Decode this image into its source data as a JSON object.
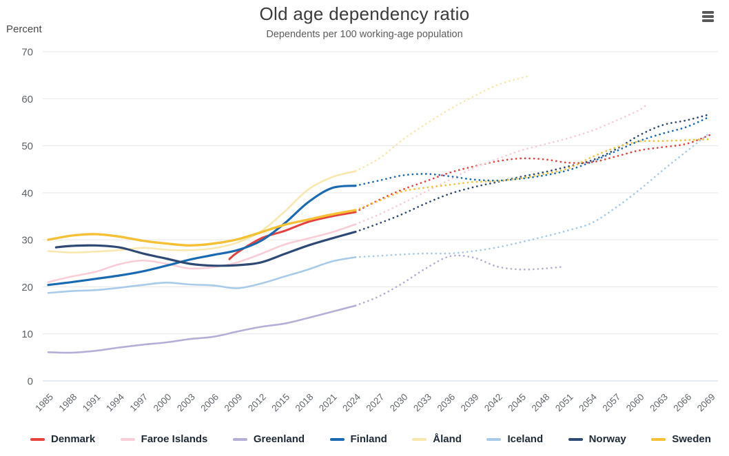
{
  "header": {
    "title": "Old age dependency ratio",
    "subtitle": "Dependents per 100 working-age population"
  },
  "controls": {
    "context_menu_tooltip": "Chart context menu"
  },
  "chart_data": {
    "type": "line",
    "title": "Old age dependency ratio",
    "subtitle": "Dependents per 100 working-age population",
    "ylabel": "Percent",
    "xlabel": "",
    "ylim": [
      0,
      70
    ],
    "xlim": [
      1985,
      2070
    ],
    "y_ticks": [
      0,
      10,
      20,
      30,
      40,
      50,
      60,
      70
    ],
    "x_ticks": [
      1985,
      1988,
      1991,
      1994,
      1997,
      2000,
      2003,
      2006,
      2009,
      2012,
      2015,
      2018,
      2021,
      2024,
      2027,
      2030,
      2033,
      2036,
      2039,
      2042,
      2045,
      2048,
      2051,
      2054,
      2057,
      2060,
      2063,
      2066,
      2069
    ],
    "x_tick_rotation": -45,
    "grid": "horizontal",
    "grid_color": "#e7e7e7",
    "axis_line_color": "#ccd6eb",
    "legend_position": "bottom",
    "projection_style": "dotted",
    "series": [
      {
        "name": "Denmark",
        "color": "#e6413c",
        "width": 3.0,
        "solid": [
          [
            2008,
            25.9
          ],
          [
            2009,
            27.3
          ],
          [
            2012,
            30.3
          ],
          [
            2015,
            31.9
          ],
          [
            2018,
            33.8
          ],
          [
            2021,
            35.0
          ],
          [
            2024,
            35.9
          ]
        ],
        "projected": [
          [
            2024,
            35.9
          ],
          [
            2027,
            38.5
          ],
          [
            2030,
            40.7
          ],
          [
            2033,
            42.5
          ],
          [
            2036,
            44.3
          ],
          [
            2039,
            45.6
          ],
          [
            2042,
            46.7
          ],
          [
            2045,
            47.3
          ],
          [
            2048,
            47.1
          ],
          [
            2051,
            46.4
          ],
          [
            2054,
            46.5
          ],
          [
            2057,
            47.7
          ],
          [
            2060,
            49.0
          ],
          [
            2063,
            49.7
          ],
          [
            2066,
            50.4
          ],
          [
            2069,
            52.3
          ]
        ]
      },
      {
        "name": "Faroe Islands",
        "color": "#f9cdd8",
        "width": 2.6,
        "solid": [
          [
            1985,
            21.0
          ],
          [
            1988,
            22.2
          ],
          [
            1991,
            23.2
          ],
          [
            1994,
            24.8
          ],
          [
            1997,
            25.6
          ],
          [
            2000,
            24.9
          ],
          [
            2003,
            23.9
          ],
          [
            2006,
            24.2
          ],
          [
            2009,
            25.2
          ],
          [
            2012,
            27.0
          ],
          [
            2015,
            29.0
          ],
          [
            2018,
            30.3
          ],
          [
            2021,
            31.6
          ],
          [
            2024,
            33.3
          ]
        ],
        "projected": [
          [
            2024,
            33.3
          ],
          [
            2027,
            35.4
          ],
          [
            2030,
            37.8
          ],
          [
            2033,
            40.3
          ],
          [
            2036,
            42.8
          ],
          [
            2039,
            45.3
          ],
          [
            2042,
            47.2
          ],
          [
            2045,
            49.0
          ],
          [
            2048,
            50.3
          ],
          [
            2051,
            51.6
          ],
          [
            2054,
            53.2
          ],
          [
            2057,
            55.3
          ],
          [
            2060,
            57.6
          ],
          [
            2061,
            58.8
          ]
        ]
      },
      {
        "name": "Greenland",
        "color": "#b6aed6",
        "width": 2.6,
        "solid": [
          [
            1985,
            6.1
          ],
          [
            1988,
            6.0
          ],
          [
            1991,
            6.4
          ],
          [
            1994,
            7.1
          ],
          [
            1997,
            7.7
          ],
          [
            2000,
            8.2
          ],
          [
            2003,
            8.9
          ],
          [
            2006,
            9.4
          ],
          [
            2009,
            10.5
          ],
          [
            2012,
            11.5
          ],
          [
            2015,
            12.2
          ],
          [
            2018,
            13.4
          ],
          [
            2021,
            14.7
          ],
          [
            2024,
            16.0
          ]
        ],
        "projected": [
          [
            2024,
            16.0
          ],
          [
            2027,
            18.0
          ],
          [
            2030,
            20.8
          ],
          [
            2033,
            24.0
          ],
          [
            2036,
            26.5
          ],
          [
            2039,
            26.2
          ],
          [
            2042,
            24.3
          ],
          [
            2045,
            23.7
          ],
          [
            2048,
            23.9
          ],
          [
            2050,
            24.2
          ]
        ]
      },
      {
        "name": "Finland",
        "color": "#1a6ab2",
        "width": 3.2,
        "solid": [
          [
            1985,
            20.4
          ],
          [
            1988,
            21.0
          ],
          [
            1991,
            21.7
          ],
          [
            1994,
            22.4
          ],
          [
            1997,
            23.3
          ],
          [
            2000,
            24.5
          ],
          [
            2003,
            25.8
          ],
          [
            2006,
            26.8
          ],
          [
            2009,
            27.8
          ],
          [
            2012,
            29.8
          ],
          [
            2015,
            33.5
          ],
          [
            2018,
            38.0
          ],
          [
            2021,
            41.0
          ],
          [
            2024,
            41.5
          ]
        ],
        "projected": [
          [
            2024,
            41.5
          ],
          [
            2027,
            42.6
          ],
          [
            2030,
            43.7
          ],
          [
            2033,
            44.0
          ],
          [
            2036,
            43.5
          ],
          [
            2039,
            42.8
          ],
          [
            2042,
            42.6
          ],
          [
            2045,
            43.0
          ],
          [
            2048,
            43.7
          ],
          [
            2051,
            44.8
          ],
          [
            2054,
            46.6
          ],
          [
            2057,
            48.8
          ],
          [
            2060,
            51.0
          ],
          [
            2063,
            52.6
          ],
          [
            2066,
            54.0
          ],
          [
            2069,
            56.2
          ]
        ]
      },
      {
        "name": "Åland",
        "color": "#f9e8ae",
        "width": 2.6,
        "solid": [
          [
            1985,
            27.6
          ],
          [
            1988,
            27.3
          ],
          [
            1991,
            27.5
          ],
          [
            1994,
            27.8
          ],
          [
            1997,
            28.3
          ],
          [
            2000,
            27.9
          ],
          [
            2003,
            27.8
          ],
          [
            2006,
            28.2
          ],
          [
            2009,
            29.4
          ],
          [
            2012,
            31.8
          ],
          [
            2015,
            36.0
          ],
          [
            2018,
            40.7
          ],
          [
            2021,
            43.3
          ],
          [
            2024,
            44.6
          ]
        ],
        "projected": [
          [
            2024,
            44.6
          ],
          [
            2027,
            47.3
          ],
          [
            2030,
            51.3
          ],
          [
            2033,
            54.7
          ],
          [
            2036,
            57.8
          ],
          [
            2039,
            60.5
          ],
          [
            2042,
            62.9
          ],
          [
            2045,
            64.4
          ],
          [
            2046,
            64.8
          ]
        ]
      },
      {
        "name": "Iceland",
        "color": "#a8cbe9",
        "width": 2.6,
        "solid": [
          [
            1985,
            18.7
          ],
          [
            1988,
            19.1
          ],
          [
            1991,
            19.3
          ],
          [
            1994,
            19.8
          ],
          [
            1997,
            20.4
          ],
          [
            2000,
            20.9
          ],
          [
            2003,
            20.5
          ],
          [
            2006,
            20.3
          ],
          [
            2009,
            19.7
          ],
          [
            2012,
            20.7
          ],
          [
            2015,
            22.2
          ],
          [
            2018,
            23.7
          ],
          [
            2021,
            25.4
          ],
          [
            2024,
            26.3
          ]
        ],
        "projected": [
          [
            2024,
            26.3
          ],
          [
            2027,
            26.6
          ],
          [
            2030,
            26.9
          ],
          [
            2033,
            27.1
          ],
          [
            2036,
            27.1
          ],
          [
            2039,
            27.6
          ],
          [
            2042,
            28.4
          ],
          [
            2045,
            29.5
          ],
          [
            2048,
            30.7
          ],
          [
            2051,
            32.0
          ],
          [
            2054,
            33.6
          ],
          [
            2057,
            36.8
          ],
          [
            2060,
            40.6
          ],
          [
            2063,
            44.8
          ],
          [
            2066,
            48.8
          ],
          [
            2069,
            52.8
          ]
        ]
      },
      {
        "name": "Norway",
        "color": "#2e4a74",
        "width": 3.2,
        "solid": [
          [
            1986,
            28.4
          ],
          [
            1988,
            28.7
          ],
          [
            1991,
            28.8
          ],
          [
            1994,
            28.4
          ],
          [
            1997,
            27.1
          ],
          [
            2000,
            26.0
          ],
          [
            2003,
            24.9
          ],
          [
            2006,
            24.5
          ],
          [
            2009,
            24.6
          ],
          [
            2012,
            25.2
          ],
          [
            2015,
            27.0
          ],
          [
            2018,
            28.8
          ],
          [
            2021,
            30.3
          ],
          [
            2024,
            31.7
          ]
        ],
        "projected": [
          [
            2024,
            31.7
          ],
          [
            2027,
            33.5
          ],
          [
            2030,
            35.5
          ],
          [
            2033,
            37.8
          ],
          [
            2036,
            39.8
          ],
          [
            2039,
            41.2
          ],
          [
            2042,
            42.3
          ],
          [
            2045,
            43.4
          ],
          [
            2048,
            44.4
          ],
          [
            2051,
            45.6
          ],
          [
            2054,
            46.9
          ],
          [
            2057,
            49.2
          ],
          [
            2060,
            52.2
          ],
          [
            2063,
            54.4
          ],
          [
            2066,
            55.4
          ],
          [
            2069,
            56.7
          ]
        ]
      },
      {
        "name": "Sweden",
        "color": "#f6c035",
        "width": 3.4,
        "solid": [
          [
            1985,
            30.0
          ],
          [
            1988,
            30.9
          ],
          [
            1991,
            31.2
          ],
          [
            1994,
            30.7
          ],
          [
            1997,
            29.8
          ],
          [
            2000,
            29.2
          ],
          [
            2003,
            28.8
          ],
          [
            2006,
            29.2
          ],
          [
            2009,
            30.1
          ],
          [
            2012,
            31.6
          ],
          [
            2015,
            33.2
          ],
          [
            2018,
            34.3
          ],
          [
            2021,
            35.4
          ],
          [
            2024,
            36.3
          ]
        ],
        "projected": [
          [
            2024,
            36.3
          ],
          [
            2027,
            38.3
          ],
          [
            2030,
            40.3
          ],
          [
            2033,
            41.1
          ],
          [
            2036,
            41.7
          ],
          [
            2039,
            42.3
          ],
          [
            2042,
            42.5
          ],
          [
            2045,
            43.1
          ],
          [
            2048,
            44.0
          ],
          [
            2051,
            45.2
          ],
          [
            2054,
            47.6
          ],
          [
            2057,
            49.6
          ],
          [
            2060,
            50.9
          ],
          [
            2063,
            51.0
          ],
          [
            2066,
            51.2
          ],
          [
            2069,
            51.4
          ]
        ]
      }
    ]
  }
}
